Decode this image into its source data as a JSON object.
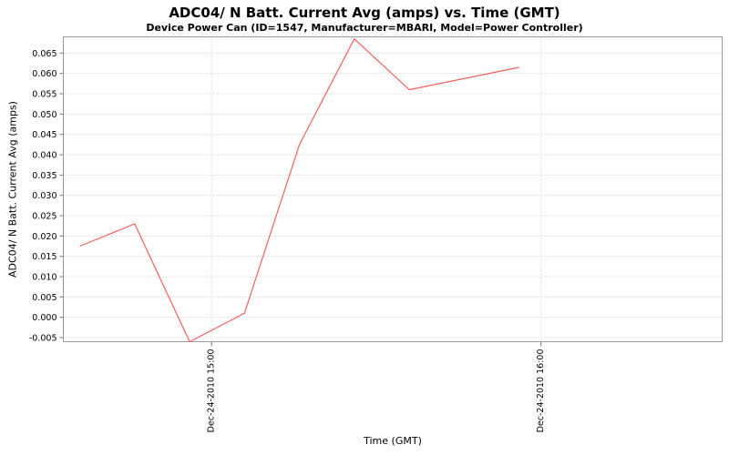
{
  "chart": {
    "title": "ADC04/ N Batt. Current Avg (amps) vs. Time (GMT)",
    "subtitle": "Device Power Can (ID=1547, Manufacturer=MBARI, Model=Power Controller)",
    "x_axis_label": "Time (GMT)",
    "y_axis_label": "ADC04/ N Batt. Current Avg (amps)"
  },
  "chart_data": {
    "type": "line",
    "title": "ADC04/ N Batt. Current Avg (amps) vs. Time (GMT)",
    "subtitle": "Device Power Can (ID=1547, Manufacturer=MBARI, Model=Power Controller)",
    "xlabel": "Time (GMT)",
    "ylabel": "ADC04/ N Batt. Current Avg (amps)",
    "legend": "none",
    "grid": {
      "visible": true,
      "color": "#d9d9d9",
      "dash": "2,2"
    },
    "axis_color": "#9a9a9a",
    "tick_color": "#777777",
    "date": "Dec-24-2010",
    "xlim": [
      "14:33",
      "16:33"
    ],
    "ylim": [
      -0.006,
      0.069
    ],
    "y_ticks": [
      "-0.005",
      "0.000",
      "0.005",
      "0.010",
      "0.015",
      "0.020",
      "0.025",
      "0.030",
      "0.035",
      "0.040",
      "0.045",
      "0.050",
      "0.055",
      "0.060",
      "0.065"
    ],
    "x_ticks": [
      {
        "label": "Dec-24-2010 15:00",
        "time": "15:00"
      },
      {
        "label": "Dec-24-2010 16:00",
        "time": "16:00"
      }
    ],
    "series": [
      {
        "name": "ADC04/ N Batt. Current Avg (amps)",
        "color": "#f25f5f",
        "points": [
          {
            "time": "14:36",
            "value": 0.0175
          },
          {
            "time": "14:46",
            "value": 0.023
          },
          {
            "time": "14:56",
            "value": -0.006
          },
          {
            "time": "15:06",
            "value": 0.001
          },
          {
            "time": "15:16",
            "value": 0.0425
          },
          {
            "time": "15:26",
            "value": 0.0685
          },
          {
            "time": "15:36",
            "value": 0.056
          },
          {
            "time": "15:56",
            "value": 0.0615
          }
        ]
      }
    ]
  }
}
